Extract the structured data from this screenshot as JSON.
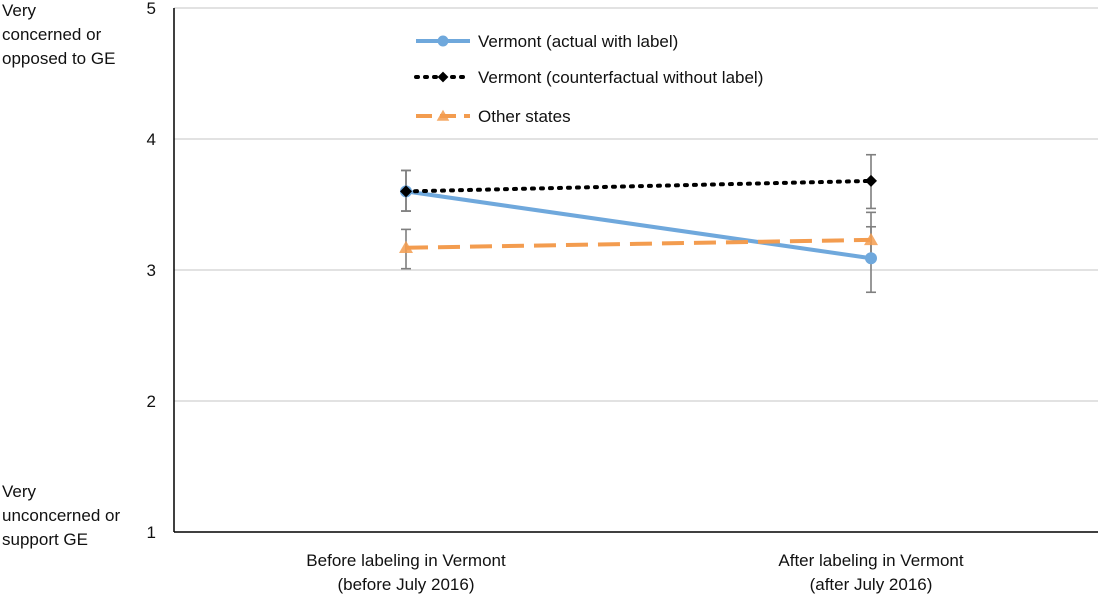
{
  "chart_data": {
    "type": "line",
    "categories": [
      [
        "Before labeling in Vermont",
        "(before July 2016)"
      ],
      [
        "After labeling in Vermont",
        "(after July 2016)"
      ]
    ],
    "ylim": [
      1,
      5
    ],
    "yticks": [
      1,
      2,
      3,
      4,
      5
    ],
    "grid": true,
    "legend_position": "top-center",
    "ylabel_top": [
      "Very",
      "concerned or",
      "opposed to GE"
    ],
    "ylabel_bottom": [
      "Very",
      "unconcerned or",
      "support GE"
    ],
    "series": [
      {
        "name": "Vermont (actual with label)",
        "values": [
          3.6,
          3.09
        ],
        "error_low": [
          3.45,
          2.83
        ],
        "error_high": [
          3.76,
          3.33
        ],
        "color": "#6fa8dc",
        "style": "solid",
        "marker": "circle"
      },
      {
        "name": "Vermont (counterfactual without label)",
        "values": [
          3.6,
          3.68
        ],
        "error_low": [
          3.45,
          3.47
        ],
        "error_high": [
          3.76,
          3.88
        ],
        "color": "#000000",
        "style": "dotted",
        "marker": "diamond"
      },
      {
        "name": "Other states",
        "values": [
          3.17,
          3.23
        ],
        "error_low": [
          3.01,
          3.1
        ],
        "error_high": [
          3.31,
          3.44
        ],
        "color": "#f39c4f",
        "style": "dashed",
        "marker": "triangle"
      }
    ]
  }
}
